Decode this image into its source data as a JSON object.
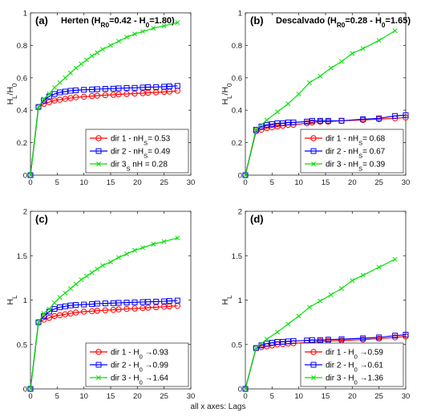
{
  "footer_note": "all x axes: Lags",
  "colors": {
    "dir1": "#ff0000",
    "dir2": "#0000ff",
    "dir3": "#00e000"
  },
  "chart_data": [
    {
      "id": "a",
      "type": "line",
      "letter": "(a)",
      "title_parts": [
        "Herten (H",
        "R0",
        "=0.42 - H",
        "0",
        "=1.80)"
      ],
      "ylabel_parts": [
        "H",
        "L",
        "/H",
        "0"
      ],
      "xlim": [
        0,
        30
      ],
      "ylim": [
        0,
        1
      ],
      "xticks": [
        0,
        5,
        10,
        15,
        20,
        25,
        30
      ],
      "yticks": [
        0,
        0.2,
        0.4,
        0.6,
        0.8,
        1
      ],
      "ytick_labels": [
        "0",
        "0.2",
        "0.4",
        "0.6",
        "0.8",
        "1"
      ],
      "series": [
        {
          "name": "dir 1 - nH_S= 0.53",
          "legend_parts": [
            "dir 1 - nH",
            "S",
            "= 0.53"
          ],
          "color": "#ff0000",
          "marker": "circle",
          "x": [
            0,
            1.5,
            2.5,
            3.5,
            4.5,
            5.5,
            6.5,
            7.5,
            8.5,
            10,
            11.5,
            12.5,
            14,
            15.5,
            16.5,
            18,
            19.5,
            21,
            22,
            23.5,
            25,
            26,
            27.5
          ],
          "y": [
            0,
            0.42,
            0.44,
            0.45,
            0.46,
            0.465,
            0.47,
            0.475,
            0.48,
            0.483,
            0.487,
            0.49,
            0.493,
            0.495,
            0.498,
            0.5,
            0.503,
            0.505,
            0.508,
            0.51,
            0.513,
            0.515,
            0.52
          ]
        },
        {
          "name": "dir 2 - nH_S= 0.49",
          "legend_parts": [
            "dir 2 - nH",
            "S",
            "= 0.49"
          ],
          "color": "#0000ff",
          "marker": "square",
          "x": [
            0,
            1.5,
            2.5,
            3.5,
            4.5,
            5.5,
            6.5,
            7.5,
            8.5,
            10,
            11.5,
            12.5,
            14,
            15.5,
            16.5,
            18,
            19.5,
            21,
            22,
            23.5,
            25,
            26,
            27.5
          ],
          "y": [
            0,
            0.42,
            0.46,
            0.485,
            0.5,
            0.51,
            0.515,
            0.52,
            0.523,
            0.526,
            0.528,
            0.53,
            0.532,
            0.533,
            0.535,
            0.537,
            0.538,
            0.54,
            0.542,
            0.543,
            0.545,
            0.547,
            0.55
          ]
        },
        {
          "name": "dir 3 nH_S = 0.28",
          "legend_parts": [
            "dir 3",
            "S",
            " nH  = 0.28"
          ],
          "color": "#00e000",
          "marker": "x",
          "x": [
            0,
            1.5,
            2.5,
            3.5,
            4.5,
            5.5,
            6.5,
            7.5,
            8.5,
            9.5,
            10.5,
            11.5,
            12.5,
            13.5,
            15,
            16.5,
            18,
            19.5,
            21,
            23,
            25,
            27.5
          ],
          "y": [
            0,
            0.42,
            0.47,
            0.5,
            0.54,
            0.57,
            0.6,
            0.63,
            0.66,
            0.685,
            0.71,
            0.735,
            0.755,
            0.775,
            0.8,
            0.825,
            0.85,
            0.87,
            0.885,
            0.905,
            0.92,
            0.94
          ]
        }
      ]
    },
    {
      "id": "b",
      "type": "line",
      "letter": "(b)",
      "title_parts": [
        "Descalvado (H",
        "R0",
        "=0.28 - H",
        "0",
        "=1.65)"
      ],
      "ylabel_parts": [
        "H",
        "L",
        "/H",
        "0"
      ],
      "xlim": [
        0,
        30
      ],
      "ylim": [
        0,
        1
      ],
      "xticks": [
        0,
        5,
        10,
        15,
        20,
        25,
        30
      ],
      "yticks": [
        0,
        0.2,
        0.4,
        0.6,
        0.8,
        1
      ],
      "ytick_labels": [
        "0",
        "0.2",
        "0.4",
        "0.6",
        "0.8",
        "1"
      ],
      "series": [
        {
          "name": "dir 1 - nH_S= 0.68",
          "legend_parts": [
            "dir 1 - nH",
            "S",
            "= 0.68"
          ],
          "color": "#ff0000",
          "marker": "circle",
          "x": [
            0,
            2,
            3,
            4,
            5,
            6,
            7,
            8,
            9,
            11.5,
            12.5,
            14,
            15.5,
            18,
            22,
            25,
            28,
            30
          ],
          "y": [
            0,
            0.27,
            0.28,
            0.29,
            0.295,
            0.3,
            0.305,
            0.31,
            0.31,
            0.32,
            0.325,
            0.33,
            0.33,
            0.335,
            0.34,
            0.345,
            0.35,
            0.355
          ]
        },
        {
          "name": "dir 2 - nH_S= 0.67",
          "legend_parts": [
            "dir 2 - nH",
            "S",
            "= 0.67"
          ],
          "color": "#0000ff",
          "marker": "square",
          "x": [
            0,
            2,
            3,
            4,
            5,
            6,
            7,
            8,
            9,
            11.5,
            12.5,
            14,
            15.5,
            18,
            22,
            25,
            28,
            30
          ],
          "y": [
            0,
            0.28,
            0.3,
            0.31,
            0.315,
            0.32,
            0.32,
            0.325,
            0.325,
            0.33,
            0.335,
            0.335,
            0.335,
            0.335,
            0.345,
            0.35,
            0.365,
            0.37
          ]
        },
        {
          "name": "dir 3 - nH_S= 0.39",
          "legend_parts": [
            "dir 3 - nH",
            "S",
            "= 0.39"
          ],
          "color": "#00e000",
          "marker": "x",
          "x": [
            0,
            2,
            4,
            6,
            8,
            10,
            12,
            14,
            16,
            18,
            20,
            22,
            25,
            28
          ],
          "y": [
            0,
            0.28,
            0.34,
            0.39,
            0.44,
            0.5,
            0.57,
            0.61,
            0.66,
            0.7,
            0.75,
            0.78,
            0.83,
            0.89
          ]
        }
      ]
    },
    {
      "id": "c",
      "type": "line",
      "letter": "(c)",
      "title_parts": [],
      "ylabel_parts": [
        "H",
        "L"
      ],
      "xlim": [
        0,
        30
      ],
      "ylim": [
        0,
        2
      ],
      "xticks": [
        0,
        5,
        10,
        15,
        20,
        25,
        30
      ],
      "yticks": [
        0,
        0.5,
        1,
        1.5,
        2
      ],
      "ytick_labels": [
        "0",
        "0.5",
        "1",
        "1.5",
        "2"
      ],
      "series": [
        {
          "name": "dir 1 - H0 ->0.93",
          "legend_parts": [
            "dir 1 - H",
            "0",
            " →0.93"
          ],
          "color": "#ff0000",
          "marker": "circle",
          "x": [
            0,
            1.5,
            2.5,
            3.5,
            4.5,
            5.5,
            6.5,
            7.5,
            8.5,
            10,
            11.5,
            12.5,
            14,
            15.5,
            16.5,
            18,
            19.5,
            21,
            22,
            23.5,
            25,
            26,
            27.5
          ],
          "y": [
            0,
            0.75,
            0.78,
            0.8,
            0.82,
            0.83,
            0.84,
            0.85,
            0.86,
            0.87,
            0.875,
            0.88,
            0.885,
            0.89,
            0.895,
            0.9,
            0.905,
            0.91,
            0.915,
            0.92,
            0.925,
            0.93,
            0.935
          ]
        },
        {
          "name": "dir 2 - H0 ->0.99",
          "legend_parts": [
            "dir 2 - H",
            "0",
            " →0.99"
          ],
          "color": "#0000ff",
          "marker": "square",
          "x": [
            0,
            1.5,
            2.5,
            3.5,
            4.5,
            5.5,
            6.5,
            7.5,
            8.5,
            10,
            11.5,
            12.5,
            14,
            15.5,
            16.5,
            18,
            19.5,
            21,
            22,
            23.5,
            25,
            26,
            27.5
          ],
          "y": [
            0,
            0.75,
            0.82,
            0.87,
            0.9,
            0.92,
            0.93,
            0.94,
            0.945,
            0.95,
            0.955,
            0.96,
            0.963,
            0.966,
            0.969,
            0.972,
            0.975,
            0.978,
            0.98,
            0.983,
            0.986,
            0.99,
            0.995
          ]
        },
        {
          "name": "dir 3 - H0 ->1.64",
          "legend_parts": [
            "dir 3 - H",
            "0",
            " →1.64"
          ],
          "color": "#00e000",
          "marker": "x",
          "x": [
            0,
            1.5,
            2.5,
            3.5,
            4.5,
            5.5,
            6.5,
            7.5,
            8.5,
            9.5,
            10.5,
            11.5,
            12.5,
            13.5,
            15,
            16.5,
            18,
            19.5,
            21,
            23,
            25,
            27.5
          ],
          "y": [
            0,
            0.75,
            0.85,
            0.9,
            0.97,
            1.03,
            1.08,
            1.13,
            1.18,
            1.23,
            1.27,
            1.31,
            1.35,
            1.39,
            1.43,
            1.48,
            1.52,
            1.56,
            1.59,
            1.63,
            1.66,
            1.7
          ]
        }
      ]
    },
    {
      "id": "d",
      "type": "line",
      "letter": "(d)",
      "title_parts": [],
      "ylabel_parts": [
        "H",
        "L"
      ],
      "xlim": [
        0,
        30
      ],
      "ylim": [
        0,
        2
      ],
      "xticks": [
        0,
        5,
        10,
        15,
        20,
        25,
        30
      ],
      "yticks": [
        0,
        0.5,
        1,
        1.5,
        2
      ],
      "ytick_labels": [
        "0",
        "0.5",
        "1",
        "1.5",
        "2"
      ],
      "series": [
        {
          "name": "dir 1 - H0 ->0.59",
          "legend_parts": [
            "dir 1 - H",
            "0",
            " →0.59"
          ],
          "color": "#ff0000",
          "marker": "circle",
          "x": [
            0,
            2,
            3,
            4,
            5,
            6,
            7,
            8,
            9,
            11.5,
            12.5,
            14,
            15.5,
            18,
            22,
            25,
            28,
            30
          ],
          "y": [
            0,
            0.46,
            0.47,
            0.48,
            0.49,
            0.5,
            0.505,
            0.51,
            0.515,
            0.52,
            0.525,
            0.535,
            0.54,
            0.545,
            0.555,
            0.565,
            0.58,
            0.59
          ]
        },
        {
          "name": "dir 2 - H0 ->0.61",
          "legend_parts": [
            "dir 2 - H",
            "0",
            " →0.61"
          ],
          "color": "#0000ff",
          "marker": "square",
          "x": [
            0,
            2,
            3,
            4,
            5,
            6,
            7,
            8,
            9,
            11.5,
            12.5,
            14,
            15.5,
            18,
            22,
            25,
            28,
            30
          ],
          "y": [
            0,
            0.46,
            0.49,
            0.51,
            0.52,
            0.53,
            0.53,
            0.535,
            0.54,
            0.545,
            0.55,
            0.55,
            0.555,
            0.56,
            0.57,
            0.58,
            0.6,
            0.61
          ]
        },
        {
          "name": "dir 3 - H0 ->1.36",
          "legend_parts": [
            "dir 3 - H",
            "0",
            " →1.36"
          ],
          "color": "#00e000",
          "marker": "x",
          "x": [
            0,
            2,
            4,
            6,
            8,
            10,
            12,
            14,
            16,
            18,
            20,
            22,
            25,
            28
          ],
          "y": [
            0,
            0.46,
            0.56,
            0.64,
            0.73,
            0.82,
            0.92,
            0.99,
            1.06,
            1.13,
            1.22,
            1.28,
            1.37,
            1.46
          ]
        }
      ]
    }
  ]
}
